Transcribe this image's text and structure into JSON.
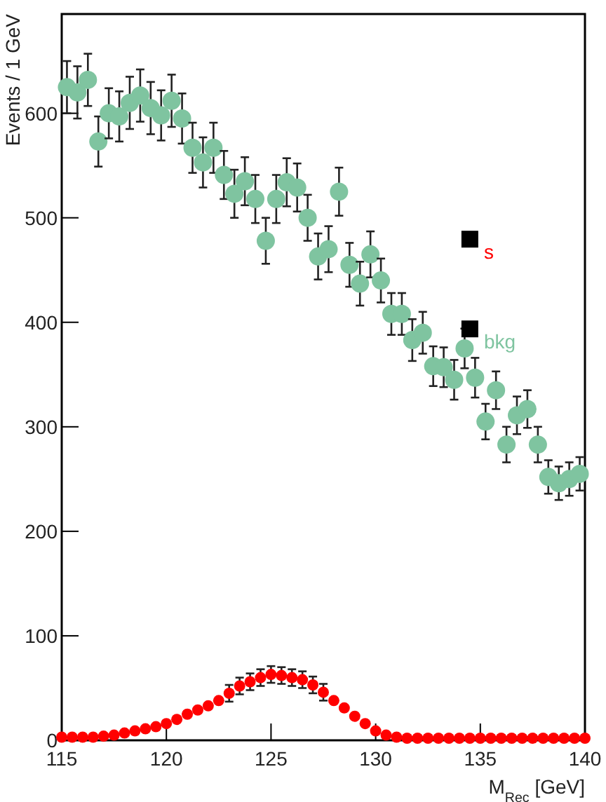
{
  "chart_data": {
    "type": "scatter",
    "xlabel": "M$_{Rec}$ [GeV]",
    "ylabel": "Events / 1 GeV",
    "xlim": [
      115,
      140
    ],
    "ylim": [
      0,
      695
    ],
    "xticks": [
      115,
      120,
      125,
      130,
      135,
      140
    ],
    "yticks": [
      0,
      100,
      200,
      300,
      400,
      500,
      600
    ],
    "legend": "right",
    "marker": "circle",
    "grid": false,
    "series": [
      {
        "name": "bkg",
        "color": "#7fc4a0",
        "x": [
          115.25,
          115.75,
          116.25,
          116.75,
          117.25,
          117.75,
          118.25,
          118.75,
          119.25,
          119.75,
          120.25,
          120.75,
          121.25,
          121.75,
          122.25,
          122.75,
          123.25,
          123.75,
          124.25,
          124.75,
          125.25,
          125.75,
          126.25,
          126.75,
          127.25,
          127.75,
          128.25,
          128.75,
          129.25,
          129.75,
          130.25,
          130.75,
          131.25,
          131.75,
          132.25,
          132.75,
          133.25,
          133.75,
          134.25,
          134.75,
          135.25,
          135.75,
          136.25,
          136.75,
          137.25,
          137.75,
          138.25,
          138.75,
          139.25,
          139.75
        ],
        "values": [
          625,
          620,
          632,
          573,
          600,
          597,
          610,
          617,
          605,
          598,
          612,
          595,
          567,
          553,
          567,
          541,
          523,
          535,
          518,
          478,
          518,
          534,
          529,
          500,
          463,
          470,
          525,
          455,
          437,
          465,
          440,
          408,
          408,
          383,
          390,
          358,
          357,
          345,
          375,
          347,
          305,
          335,
          283,
          311,
          317,
          283,
          252,
          246,
          250,
          255
        ],
        "errors": [
          25,
          25,
          25,
          24,
          24,
          24,
          25,
          25,
          25,
          24,
          25,
          24,
          24,
          24,
          24,
          23,
          23,
          23,
          23,
          22,
          23,
          23,
          23,
          22,
          22,
          22,
          23,
          21,
          21,
          22,
          21,
          20,
          20,
          20,
          20,
          19,
          19,
          19,
          19,
          19,
          17,
          18,
          17,
          18,
          18,
          17,
          16,
          16,
          16,
          16
        ]
      },
      {
        "name": "s",
        "color": "#ff0000",
        "x": [
          115,
          115.5,
          116,
          116.5,
          117,
          117.5,
          118,
          118.5,
          119,
          119.5,
          120,
          120.5,
          121,
          121.5,
          122,
          122.5,
          123,
          123.5,
          124,
          124.5,
          125,
          125.5,
          126,
          126.5,
          127,
          127.5,
          128,
          128.5,
          129,
          129.5,
          130,
          130.5,
          131,
          131.5,
          132,
          132.5,
          133,
          133.5,
          134,
          134.5,
          135,
          135.5,
          136,
          136.5,
          137,
          137.5,
          138,
          138.5,
          139,
          139.5,
          140
        ],
        "values": [
          3,
          3,
          3,
          3,
          4,
          5,
          7,
          9,
          11,
          13,
          16,
          20,
          25,
          29,
          33,
          38,
          45,
          52,
          56,
          60,
          63,
          62,
          60,
          58,
          53,
          46,
          38,
          31,
          23,
          16,
          9,
          5,
          3,
          2,
          2,
          2,
          2,
          2,
          2,
          2,
          2,
          2,
          2,
          2,
          2,
          2,
          2,
          2,
          2,
          2,
          2
        ],
        "errors": [
          null,
          null,
          null,
          null,
          null,
          null,
          null,
          null,
          null,
          null,
          null,
          null,
          null,
          null,
          null,
          null,
          8,
          8,
          8,
          8,
          8,
          8,
          8,
          8,
          8,
          8,
          null,
          null,
          null,
          null,
          null,
          null,
          null,
          null,
          null,
          null,
          null,
          null,
          null,
          null,
          null,
          null,
          null,
          null,
          null,
          null,
          null,
          null,
          null,
          null,
          null
        ]
      }
    ]
  }
}
